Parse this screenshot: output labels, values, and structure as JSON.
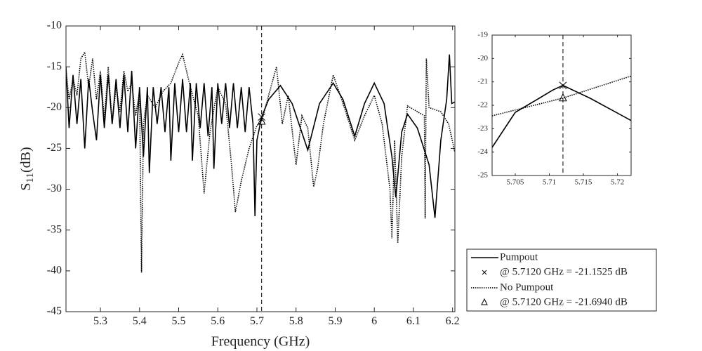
{
  "chart_data": [
    {
      "type": "line",
      "xlabel": "Frequency (GHz)",
      "ylabel": "S",
      "ylabel_sub": "11",
      "ylabel_unit": "(dB)",
      "xlim": [
        5.212,
        6.206
      ],
      "ylim": [
        -45,
        -10
      ],
      "xticks": [
        5.3,
        5.4,
        5.5,
        5.6,
        5.7,
        5.8,
        5.9,
        6,
        6.1,
        6.2
      ],
      "yticks": [
        -45,
        -40,
        -35,
        -30,
        -25,
        -20,
        -15,
        -10
      ],
      "vline": 5.712,
      "legend": "bottom-right",
      "series": [
        {
          "name": "Pumpout",
          "color": "#000000",
          "dash": "solid",
          "x": [
            5.212,
            5.22,
            5.23,
            5.24,
            5.25,
            5.26,
            5.27,
            5.28,
            5.29,
            5.3,
            5.31,
            5.32,
            5.33,
            5.34,
            5.35,
            5.36,
            5.37,
            5.38,
            5.39,
            5.4,
            5.41,
            5.42,
            5.425,
            5.435,
            5.445,
            5.455,
            5.465,
            5.475,
            5.48,
            5.49,
            5.5,
            5.51,
            5.52,
            5.53,
            5.535,
            5.545,
            5.555,
            5.565,
            5.575,
            5.585,
            5.59,
            5.6,
            5.61,
            5.62,
            5.63,
            5.64,
            5.65,
            5.66,
            5.67,
            5.68,
            5.69,
            5.695,
            5.7,
            5.712,
            5.73,
            5.76,
            5.79,
            5.83,
            5.86,
            5.895,
            5.92,
            5.95,
            5.975,
            6.0,
            6.025,
            6.045,
            6.055,
            6.07,
            6.085,
            6.11,
            6.14,
            6.155,
            6.17,
            6.185,
            6.192,
            6.198,
            6.206
          ],
          "values": [
            -15.0,
            -22.5,
            -16.0,
            -22.0,
            -16.5,
            -25.0,
            -16.5,
            -20.5,
            -24.0,
            -16.0,
            -22.5,
            -16.0,
            -22.0,
            -16.5,
            -22.5,
            -16.0,
            -23.0,
            -15.5,
            -25.0,
            -17.5,
            -26.0,
            -17.5,
            -28.0,
            -17.5,
            -22.0,
            -17.5,
            -23.0,
            -17.5,
            -26.5,
            -17.0,
            -23.0,
            -16.5,
            -23.0,
            -17.0,
            -26.5,
            -17.0,
            -22.5,
            -17.0,
            -23.5,
            -17.5,
            -27.5,
            -17.0,
            -22.0,
            -17.0,
            -22.5,
            -17.0,
            -22.5,
            -17.5,
            -23.0,
            -17.5,
            -22.0,
            -33.3,
            -24.0,
            -21.15,
            -19.0,
            -17.3,
            -19.5,
            -25.2,
            -19.5,
            -17.0,
            -19.0,
            -23.5,
            -19.5,
            -17.0,
            -19.5,
            -26.0,
            -31.0,
            -23.0,
            -20.8,
            -22.5,
            -27.0,
            -33.5,
            -24.0,
            -19.0,
            -13.5,
            -19.5,
            -19.3
          ],
          "marker": {
            "x": 5.712,
            "y": -21.1525,
            "symbol": "x",
            "label": "@ 5.7120 GHz = -21.1525 dB"
          }
        },
        {
          "name": "No Pumpout",
          "color": "#000000",
          "dash": "dotted",
          "x": [
            5.212,
            5.22,
            5.23,
            5.24,
            5.25,
            5.26,
            5.27,
            5.28,
            5.29,
            5.3,
            5.31,
            5.32,
            5.33,
            5.34,
            5.35,
            5.36,
            5.37,
            5.38,
            5.39,
            5.4,
            5.405,
            5.41,
            5.42,
            5.44,
            5.46,
            5.48,
            5.5,
            5.51,
            5.53,
            5.55,
            5.565,
            5.58,
            5.6,
            5.62,
            5.635,
            5.645,
            5.66,
            5.68,
            5.7,
            5.712,
            5.73,
            5.75,
            5.765,
            5.78,
            5.8,
            5.815,
            5.83,
            5.845,
            5.855,
            5.87,
            5.895,
            5.92,
            5.95,
            5.975,
            6.0,
            6.02,
            6.04,
            6.045,
            6.052,
            6.06,
            6.07,
            6.085,
            6.11,
            6.128,
            6.13,
            6.133,
            6.14,
            6.17,
            6.19,
            6.206
          ],
          "values": [
            -15.5,
            -19.0,
            -16.5,
            -18.5,
            -14.0,
            -13.2,
            -17.5,
            -14.0,
            -19.0,
            -15.5,
            -21.5,
            -15.0,
            -22.0,
            -17.5,
            -20.5,
            -15.5,
            -18.0,
            -17.0,
            -21.0,
            -18.0,
            -40.2,
            -22.0,
            -18.5,
            -20.0,
            -18.0,
            -17.0,
            -14.5,
            -13.5,
            -17.5,
            -21.0,
            -30.5,
            -23.0,
            -17.5,
            -19.5,
            -27.0,
            -32.8,
            -29.0,
            -25.0,
            -22.2,
            -21.69,
            -18.5,
            -15.0,
            -22.0,
            -18.5,
            -27.0,
            -21.0,
            -22.5,
            -29.7,
            -27.5,
            -22.0,
            -16.0,
            -19.5,
            -24.0,
            -21.0,
            -18.5,
            -22.0,
            -30.0,
            -36.0,
            -24.0,
            -36.6,
            -26.0,
            -19.8,
            -20.5,
            -21.0,
            -33.6,
            -14.0,
            -20.0,
            -20.5,
            -22.0,
            -25.5
          ],
          "marker": {
            "x": 5.712,
            "y": -21.694,
            "symbol": "triangle",
            "label": "@ 5.7120 GHz = -21.6940 dB"
          }
        }
      ]
    },
    {
      "type": "line",
      "xlim": [
        5.7016,
        5.722
      ],
      "ylim": [
        -25,
        -19
      ],
      "xticks": [
        5.705,
        5.71,
        5.715,
        5.72
      ],
      "yticks": [
        -25,
        -24,
        -23,
        -22,
        -21,
        -20,
        -19
      ],
      "vline": 5.712,
      "series": [
        {
          "color": "#000000",
          "dash": "solid",
          "x": [
            5.7016,
            5.705,
            5.7085,
            5.7105,
            5.712,
            5.716,
            5.722
          ],
          "values": [
            -23.8,
            -22.3,
            -21.7,
            -21.35,
            -21.15,
            -21.7,
            -22.65
          ],
          "marker": {
            "x": 5.712,
            "y": -21.1525,
            "symbol": "x"
          }
        },
        {
          "color": "#000000",
          "dash": "dotted",
          "x": [
            5.7016,
            5.712,
            5.722
          ],
          "values": [
            -22.45,
            -21.69,
            -20.75
          ],
          "marker": {
            "x": 5.712,
            "y": -21.694,
            "symbol": "triangle"
          }
        }
      ]
    }
  ]
}
